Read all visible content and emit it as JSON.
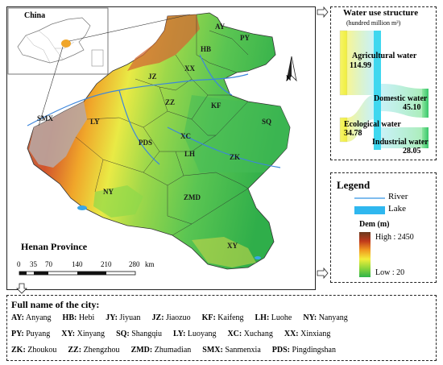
{
  "map": {
    "inset_label": "China",
    "province_label": "Henan Province",
    "north_label": "N",
    "scale": {
      "ticks": [
        "0",
        "35",
        "70",
        "140",
        "210",
        "280"
      ],
      "unit": "km"
    },
    "city_labels": [
      {
        "code": "AY"
      },
      {
        "code": "HB"
      },
      {
        "code": "PY"
      },
      {
        "code": "XX"
      },
      {
        "code": "JZ"
      },
      {
        "code": "ZZ"
      },
      {
        "code": "KF"
      },
      {
        "code": "SQ"
      },
      {
        "code": "LY"
      },
      {
        "code": "SMX"
      },
      {
        "code": "PDS"
      },
      {
        "code": "XC"
      },
      {
        "code": "LH"
      },
      {
        "code": "ZK"
      },
      {
        "code": "NY"
      },
      {
        "code": "ZMD"
      },
      {
        "code": "XY"
      }
    ]
  },
  "water_use": {
    "title": "Water use structure",
    "unit": "(hundred million m³)",
    "items": [
      {
        "label": "Agricultural water",
        "value": "114.99",
        "color": "#f3f35a"
      },
      {
        "label": "Domestic water",
        "value": "45.10",
        "color": "#4fd18a"
      },
      {
        "label": "Ecological water",
        "value": "34.78",
        "color": "#f3f35a"
      },
      {
        "label": "Industrial water",
        "value": "28.05",
        "color": "#4fd18a"
      }
    ],
    "center_color": "#3fd7ef"
  },
  "legend": {
    "title": "Legend",
    "river": "River",
    "lake": "Lake",
    "dem_title": "Dem (m)",
    "high": "High : 2450",
    "low": "Low :  20",
    "river_color": "#55a6e8",
    "lake_color": "#2fb7ef"
  },
  "full_names": {
    "title": "Full name of the city:",
    "rows": [
      [
        {
          "code": "AY:",
          "name": "Anyang"
        },
        {
          "code": "HB:",
          "name": "Hebi"
        },
        {
          "code": "JY:",
          "name": "Jiyuan"
        },
        {
          "code": "JZ:",
          "name": "Jiaozuo"
        },
        {
          "code": "KF:",
          "name": "Kaifeng"
        },
        {
          "code": "LH:",
          "name": "Luohe"
        },
        {
          "code": "NY:",
          "name": "Nanyang"
        }
      ],
      [
        {
          "code": "PY:",
          "name": "Puyang"
        },
        {
          "code": "XY:",
          "name": "Xinyang"
        },
        {
          "code": "SQ:",
          "name": "Shangqiu"
        },
        {
          "code": "LY:",
          "name": "Luoyang"
        },
        {
          "code": "XC:",
          "name": "Xuchang"
        },
        {
          "code": "XX:",
          "name": "Xinxiang"
        }
      ],
      [
        {
          "code": "ZK:",
          "name": "Zhoukou"
        },
        {
          "code": "ZZ:",
          "name": "Zhengzhou"
        },
        {
          "code": "ZMD:",
          "name": "Zhumadian"
        },
        {
          "code": "SMX:",
          "name": "Sanmenxia"
        },
        {
          "code": "PDS:",
          "name": "Pingdingshan"
        }
      ]
    ]
  }
}
